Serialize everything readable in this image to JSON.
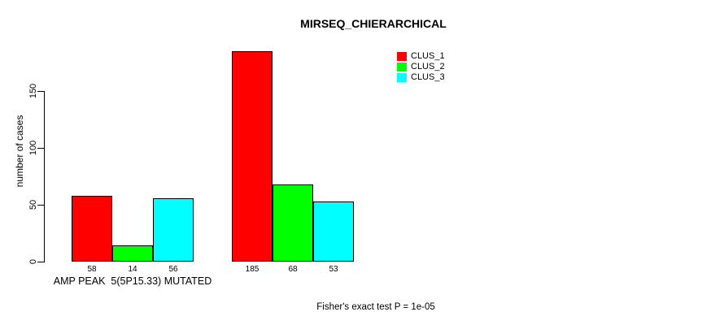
{
  "chart_data": {
    "type": "bar",
    "title": "MIRSEQ_CHIERARCHICAL",
    "ylabel": "number of cases",
    "xlabel": "",
    "ylim": [
      0,
      150
    ],
    "yticks": [
      0,
      50,
      100,
      150
    ],
    "grid": false,
    "legend_position": "top-right",
    "bar_fill_border_color": "#000000",
    "categories": [
      "AMP PEAK  5(5P15.33) MUTATED",
      ""
    ],
    "series": [
      {
        "name": "CLUS_1",
        "color": "#ff0000",
        "values": [
          58,
          185
        ]
      },
      {
        "name": "CLUS_2",
        "color": "#00ff00",
        "values": [
          14,
          68
        ]
      },
      {
        "name": "CLUS_3",
        "color": "#00ffff",
        "values": [
          56,
          53
        ]
      }
    ],
    "bar_value_labels": [
      [
        58,
        14,
        56
      ],
      [
        185,
        68,
        53
      ]
    ],
    "annotation": "Fisher's exact test P = 1e-05"
  }
}
